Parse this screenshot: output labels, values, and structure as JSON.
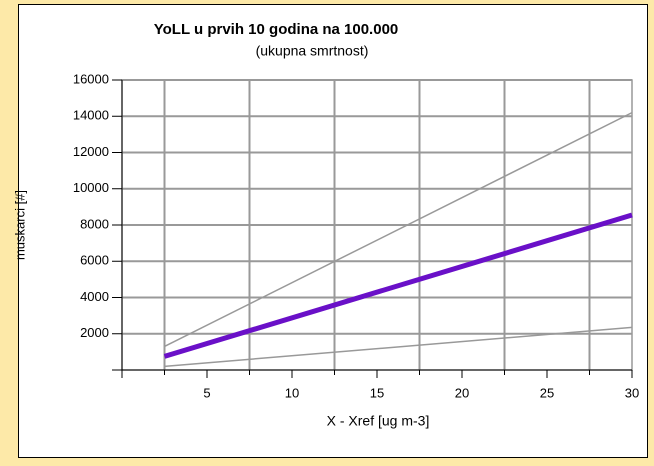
{
  "chart_data": {
    "type": "line",
    "title": "YoLL u prvih 10 godina na 100.000",
    "subtitle": "(ukupna smrtnost)",
    "x_label": "X - Xref [ug m-3]",
    "y_label": "muskarci [#]",
    "x": [
      2.5,
      30
    ],
    "series": [
      {
        "color": "#999999",
        "width": 1.5,
        "values": [
          1300,
          14200
        ]
      },
      {
        "color": "#999999",
        "width": 1.5,
        "values": [
          200,
          2350
        ]
      },
      {
        "color": "#6a10c8",
        "width": 5,
        "values": [
          750,
          8550
        ]
      }
    ],
    "xlim": [
      0,
      30
    ],
    "ylim": [
      0,
      16000
    ],
    "xticks": [
      5,
      10,
      15,
      20,
      25,
      30
    ],
    "yticks": [
      2000,
      4000,
      6000,
      8000,
      10000,
      12000,
      14000,
      16000
    ],
    "xgrid": [
      2.5,
      7.5,
      12.5,
      17.5,
      22.5,
      27.5
    ],
    "grid": true
  }
}
